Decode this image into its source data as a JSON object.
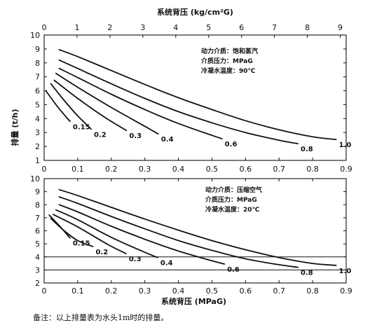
{
  "chart_data": [
    {
      "type": "line",
      "ylabel": "排量 (t/h)",
      "xlim": [
        0,
        0.9
      ],
      "ylim": [
        1,
        10
      ],
      "xticks": [
        0,
        0.1,
        0.2,
        0.3,
        0.4,
        0.5,
        0.6,
        0.7,
        0.8,
        0.9
      ],
      "yticks": [
        1,
        2,
        3,
        4,
        5,
        6,
        7,
        8,
        9,
        10
      ],
      "x_top": {
        "label": "系统背压 (kg/cm²G)",
        "xlim": [
          0,
          9.18
        ],
        "ticks": [
          0,
          1,
          2,
          3,
          4,
          5,
          6,
          7,
          8,
          9
        ]
      },
      "legend_text": [
        "动力介质：饱和蒸汽",
        "介质压力：MPaG",
        "冷凝水温度：90℃"
      ],
      "legend_position": "top-right",
      "grid": false,
      "series": [
        {
          "name": "1.0",
          "x": [
            0.045,
            0.1,
            0.2,
            0.3,
            0.4,
            0.5,
            0.6,
            0.7,
            0.8,
            0.87
          ],
          "y": [
            8.95,
            8.45,
            7.45,
            6.45,
            5.5,
            4.65,
            3.85,
            3.2,
            2.7,
            2.5
          ]
        },
        {
          "name": "0.8",
          "x": [
            0.045,
            0.1,
            0.2,
            0.3,
            0.4,
            0.5,
            0.6,
            0.7,
            0.756
          ],
          "y": [
            8.2,
            7.6,
            6.5,
            5.45,
            4.5,
            3.7,
            3.0,
            2.45,
            2.2
          ]
        },
        {
          "name": "0.6",
          "x": [
            0.045,
            0.1,
            0.2,
            0.3,
            0.4,
            0.5,
            0.53
          ],
          "y": [
            7.6,
            6.95,
            5.75,
            4.65,
            3.65,
            2.8,
            2.55
          ]
        },
        {
          "name": "0.4",
          "x": [
            0.035,
            0.1,
            0.2,
            0.3,
            0.34
          ],
          "y": [
            7.25,
            6.25,
            4.8,
            3.45,
            2.9
          ]
        },
        {
          "name": "0.3",
          "x": [
            0.03,
            0.1,
            0.18,
            0.245
          ],
          "y": [
            6.75,
            5.45,
            4.1,
            3.15
          ]
        },
        {
          "name": "0.2",
          "x": [
            0.02,
            0.06,
            0.1,
            0.14
          ],
          "y": [
            6.5,
            5.3,
            4.2,
            3.25
          ]
        },
        {
          "name": "0.15",
          "x": [
            0.005,
            0.04,
            0.077
          ],
          "y": [
            6.0,
            4.85,
            3.8
          ]
        }
      ]
    },
    {
      "type": "line",
      "xlabel": "系统背压 (MPaG)",
      "xlim": [
        0,
        0.9
      ],
      "ylim": [
        2,
        10
      ],
      "xticks": [
        0,
        0.1,
        0.2,
        0.3,
        0.4,
        0.5,
        0.6,
        0.7,
        0.8,
        0.9
      ],
      "yticks": [
        2,
        3,
        4,
        5,
        6,
        7,
        8,
        9,
        10
      ],
      "gridlines_y": [
        3,
        4
      ],
      "legend_text": [
        "动力介质：压缩空气",
        "介质压力：MPaG",
        "冷凝水温度：20℃"
      ],
      "legend_position": "top-right",
      "series": [
        {
          "name": "1.0",
          "x": [
            0.045,
            0.1,
            0.2,
            0.3,
            0.4,
            0.5,
            0.6,
            0.7,
            0.8,
            0.87
          ],
          "y": [
            9.15,
            8.7,
            7.8,
            6.9,
            6.05,
            5.25,
            4.55,
            3.95,
            3.5,
            3.35
          ]
        },
        {
          "name": "0.8",
          "x": [
            0.045,
            0.1,
            0.2,
            0.3,
            0.4,
            0.5,
            0.6,
            0.7,
            0.756
          ],
          "y": [
            8.6,
            8.1,
            7.1,
            6.15,
            5.25,
            4.5,
            3.85,
            3.4,
            3.2
          ]
        },
        {
          "name": "0.6",
          "x": [
            0.045,
            0.1,
            0.2,
            0.3,
            0.4,
            0.5,
            0.537
          ],
          "y": [
            8.0,
            7.45,
            6.35,
            5.35,
            4.45,
            3.7,
            3.45
          ]
        },
        {
          "name": "0.4",
          "x": [
            0.035,
            0.1,
            0.2,
            0.3,
            0.338
          ],
          "y": [
            7.6,
            6.85,
            5.5,
            4.35,
            3.95
          ]
        },
        {
          "name": "0.3",
          "x": [
            0.027,
            0.1,
            0.19,
            0.244
          ],
          "y": [
            7.25,
            6.3,
            4.95,
            4.25
          ]
        },
        {
          "name": "0.2",
          "x": [
            0.02,
            0.06,
            0.1,
            0.145
          ],
          "y": [
            6.95,
            6.0,
            5.25,
            4.8
          ]
        },
        {
          "name": "0.15",
          "x": [
            0.015,
            0.05,
            0.077
          ],
          "y": [
            7.2,
            6.25,
            5.45
          ]
        }
      ]
    }
  ],
  "footnote": "备注：以上排量表为水头1m时的排量。"
}
